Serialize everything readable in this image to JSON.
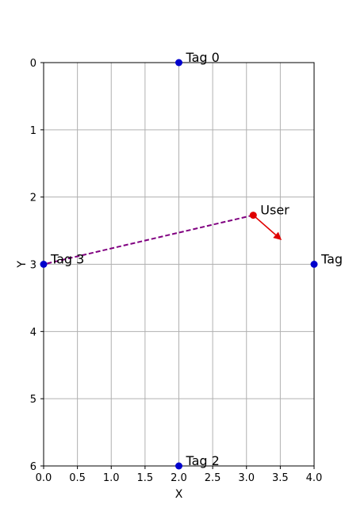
{
  "chart_data": {
    "type": "scatter",
    "title": "",
    "xlabel": "X",
    "ylabel": "Y",
    "xlim": [
      0.0,
      4.0
    ],
    "ylim": [
      6,
      0
    ],
    "y_inverted": true,
    "grid": true,
    "x_ticks": [
      0.0,
      0.5,
      1.0,
      1.5,
      2.0,
      2.5,
      3.0,
      3.5,
      4.0
    ],
    "x_tick_labels": [
      "0.0",
      "0.5",
      "1.0",
      "1.5",
      "2.0",
      "2.5",
      "3.0",
      "3.5",
      "4.0"
    ],
    "y_ticks": [
      0,
      1,
      2,
      3,
      4,
      5,
      6
    ],
    "y_tick_labels": [
      "0",
      "1",
      "2",
      "3",
      "4",
      "5",
      "6"
    ],
    "tags": [
      {
        "label": "Tag 0",
        "x": 2.0,
        "y": 0.0
      },
      {
        "label": "Tag",
        "x": 4.0,
        "y": 3.0
      },
      {
        "label": "Tag 2",
        "x": 2.0,
        "y": 6.0
      },
      {
        "label": "Tag 3",
        "x": 0.0,
        "y": 3.0
      }
    ],
    "user": {
      "label": "User",
      "x": 3.1,
      "y": 2.27
    },
    "heading_arrow": {
      "from": [
        3.1,
        2.27
      ],
      "to": [
        3.52,
        2.64
      ]
    },
    "link_line": {
      "from": [
        3.1,
        2.27
      ],
      "to": [
        0.0,
        3.0
      ],
      "style": "dashed"
    },
    "colors": {
      "tag": "#0000cc",
      "user": "#e00000",
      "arrow": "#e00000",
      "link": "#800080",
      "grid": "#b0b0b0"
    }
  }
}
